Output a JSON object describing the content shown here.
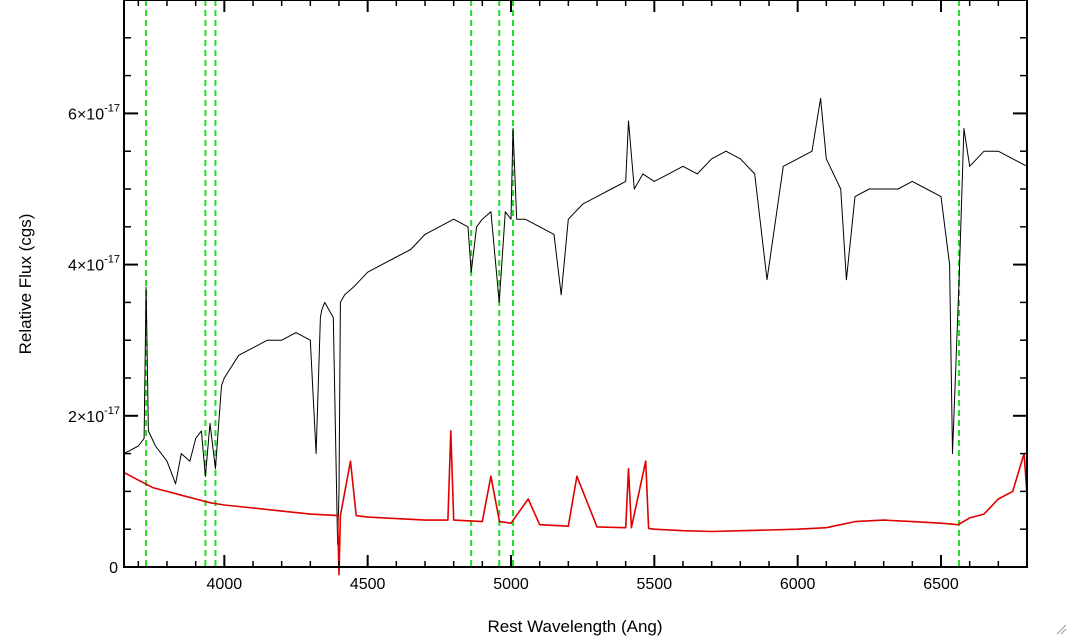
{
  "chart_data": {
    "type": "line",
    "title": "",
    "xlabel": "Rest Wavelength (Ang)",
    "ylabel": "Relative Flux (cgs)",
    "xlim": [
      3650,
      6800
    ],
    "ylim": [
      0,
      7.5e-17
    ],
    "x_ticks": [
      4000,
      4500,
      5000,
      5500,
      6000,
      6500
    ],
    "x_tick_labels": [
      "4000",
      "4500",
      "5000",
      "5500",
      "6000",
      "6500"
    ],
    "y_ticks": [
      {
        "value": 0,
        "label": "0"
      },
      {
        "value": 2e-17,
        "label": "2×10",
        "exp": "-17"
      },
      {
        "value": 4e-17,
        "label": "4×10",
        "exp": "-17"
      },
      {
        "value": 6e-17,
        "label": "6×10",
        "exp": "-17"
      }
    ],
    "grid": false,
    "series": [
      {
        "color": "#000000",
        "x": [
          3650,
          3700,
          3720,
          3727,
          3735,
          3760,
          3800,
          3830,
          3850,
          3880,
          3900,
          3920,
          3934,
          3950,
          3969,
          3990,
          4000,
          4050,
          4100,
          4150,
          4200,
          4250,
          4300,
          4320,
          4335,
          4340,
          4350,
          4380,
          4395,
          4400,
          4405,
          4420,
          4450,
          4500,
          4550,
          4600,
          4650,
          4700,
          4750,
          4800,
          4850,
          4861,
          4880,
          4900,
          4930,
          4959,
          4980,
          5000,
          5007,
          5020,
          5050,
          5100,
          5150,
          5175,
          5200,
          5250,
          5300,
          5350,
          5400,
          5410,
          5430,
          5460,
          5500,
          5550,
          5600,
          5650,
          5700,
          5750,
          5800,
          5850,
          5893,
          5950,
          6000,
          6050,
          6080,
          6100,
          6150,
          6170,
          6200,
          6250,
          6300,
          6350,
          6400,
          6450,
          6500,
          6530,
          6540,
          6563,
          6580,
          6600,
          6650,
          6700,
          6750,
          6800
        ],
        "y": [
          1.5e-17,
          1.6e-17,
          1.7e-17,
          3.7e-17,
          1.8e-17,
          1.6e-17,
          1.4e-17,
          1.1e-17,
          1.5e-17,
          1.4e-17,
          1.7e-17,
          1.8e-17,
          1.2e-17,
          1.9e-17,
          1.3e-17,
          2.4e-17,
          2.5e-17,
          2.8e-17,
          2.9e-17,
          3e-17,
          3e-17,
          3.1e-17,
          3e-17,
          1.5e-17,
          3.3e-17,
          3.4e-17,
          3.5e-17,
          3.3e-17,
          3e-18,
          1e-17,
          3.5e-17,
          3.6e-17,
          3.7e-17,
          3.9e-17,
          4e-17,
          4.1e-17,
          4.2e-17,
          4.4e-17,
          4.5e-17,
          4.6e-17,
          4.5e-17,
          3.9e-17,
          4.5e-17,
          4.6e-17,
          4.7e-17,
          3.5e-17,
          4.7e-17,
          4.6e-17,
          5.8e-17,
          4.6e-17,
          4.6e-17,
          4.5e-17,
          4.4e-17,
          3.6e-17,
          4.6e-17,
          4.8e-17,
          4.9e-17,
          5e-17,
          5.1e-17,
          5.9e-17,
          5e-17,
          5.2e-17,
          5.1e-17,
          5.2e-17,
          5.3e-17,
          5.2e-17,
          5.4e-17,
          5.5e-17,
          5.4e-17,
          5.2e-17,
          3.8e-17,
          5.3e-17,
          5.4e-17,
          5.5e-17,
          6.2e-17,
          5.4e-17,
          5e-17,
          3.8e-17,
          4.9e-17,
          5e-17,
          5e-17,
          5e-17,
          5.1e-17,
          5e-17,
          4.9e-17,
          4e-17,
          1.5e-17,
          3.8e-17,
          5.8e-17,
          5.3e-17,
          5.5e-17,
          5.5e-17,
          5.4e-17,
          5.3e-17
        ]
      },
      {
        "color": "#e00000",
        "x": [
          3650,
          3700,
          3750,
          3800,
          3850,
          3900,
          3950,
          4000,
          4100,
          4200,
          4300,
          4395,
          4400,
          4405,
          4440,
          4460,
          4500,
          4600,
          4700,
          4780,
          4790,
          4800,
          4900,
          4930,
          4960,
          5000,
          5060,
          5100,
          5200,
          5230,
          5300,
          5400,
          5410,
          5420,
          5470,
          5480,
          5500,
          5600,
          5700,
          5800,
          5900,
          6000,
          6100,
          6200,
          6300,
          6400,
          6500,
          6560,
          6600,
          6650,
          6700,
          6750,
          6790,
          6800
        ],
        "y": [
          1.25e-17,
          1.15e-17,
          1.05e-17,
          1e-17,
          9.5e-18,
          9e-18,
          8.5e-18,
          8.2e-18,
          7.8e-18,
          7.4e-18,
          7e-18,
          6.8e-18,
          -1e-18,
          6.8e-18,
          1.4e-17,
          6.8e-18,
          6.6e-18,
          6.4e-18,
          6.2e-18,
          6.2e-18,
          1.8e-17,
          6.2e-18,
          6e-18,
          1.2e-17,
          6e-18,
          5.8e-18,
          9e-18,
          5.6e-18,
          5.4e-18,
          1.2e-17,
          5.3e-18,
          5.2e-18,
          1.3e-17,
          5.2e-18,
          1.4e-17,
          5.1e-18,
          5e-18,
          4.8e-18,
          4.7e-18,
          4.8e-18,
          4.9e-18,
          5e-18,
          5.2e-18,
          6e-18,
          6.2e-18,
          6e-18,
          5.8e-18,
          5.6e-18,
          6.5e-18,
          7e-18,
          9e-18,
          1e-17,
          1.5e-17,
          9.5e-18
        ]
      }
    ],
    "vlines": {
      "color": "#22dd22",
      "style": "dashed",
      "x": [
        3727,
        3934,
        3969,
        4861,
        4959,
        5007,
        6563
      ]
    }
  }
}
